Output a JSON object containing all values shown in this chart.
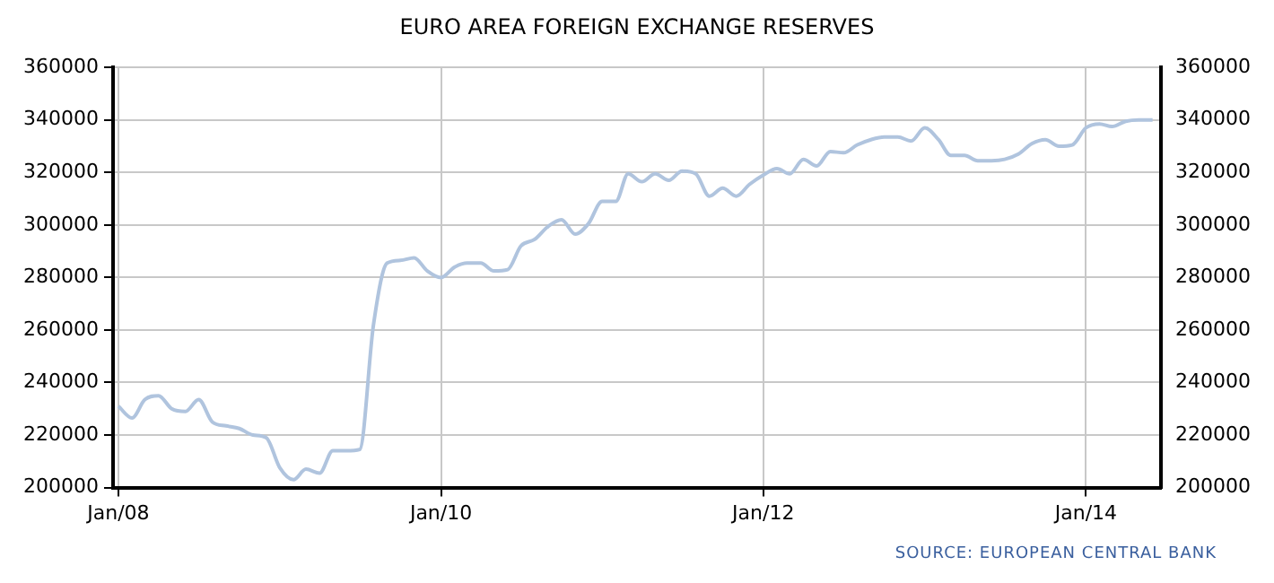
{
  "chart_data": {
    "type": "line",
    "title": "EURO AREA FOREIGN EXCHANGE RESERVES",
    "x": [
      "2008-01",
      "2008-02",
      "2008-03",
      "2008-04",
      "2008-05",
      "2008-06",
      "2008-07",
      "2008-08",
      "2008-09",
      "2008-10",
      "2008-11",
      "2008-12",
      "2009-01",
      "2009-02",
      "2009-03",
      "2009-04",
      "2009-05",
      "2009-06",
      "2009-07",
      "2009-08",
      "2009-09",
      "2009-10",
      "2009-11",
      "2009-12",
      "2010-01",
      "2010-02",
      "2010-03",
      "2010-04",
      "2010-05",
      "2010-06",
      "2010-07",
      "2010-08",
      "2010-09",
      "2010-10",
      "2010-11",
      "2010-12",
      "2011-01",
      "2011-02",
      "2011-03",
      "2011-04",
      "2011-05",
      "2011-06",
      "2011-07",
      "2011-08",
      "2011-09",
      "2011-10",
      "2011-11",
      "2011-12",
      "2012-01",
      "2012-02",
      "2012-03",
      "2012-04",
      "2012-05",
      "2012-06",
      "2012-07",
      "2012-08",
      "2012-09",
      "2012-10",
      "2012-11",
      "2012-12",
      "2013-01",
      "2013-02",
      "2013-03",
      "2013-04",
      "2013-05",
      "2013-06",
      "2013-07",
      "2013-08",
      "2013-09",
      "2013-10",
      "2013-11",
      "2013-12",
      "2014-01",
      "2014-02",
      "2014-03",
      "2014-04",
      "2014-05",
      "2014-06"
    ],
    "series": [
      {
        "color": "#b0c4de",
        "values": [
          231000,
          226500,
          233500,
          235000,
          230000,
          229000,
          233500,
          225000,
          223500,
          222500,
          220000,
          219000,
          207500,
          203000,
          207000,
          205500,
          214000,
          214000,
          214500,
          262000,
          285500,
          286500,
          287500,
          282500,
          280000,
          284000,
          285500,
          285500,
          282500,
          283000,
          292000,
          294500,
          299500,
          302000,
          296500,
          300500,
          309000,
          309000,
          319500,
          316500,
          319500,
          317000,
          320500,
          319500,
          311000,
          314000,
          311000,
          315500,
          319000,
          321500,
          319500,
          325000,
          322500,
          328000,
          327500,
          330500,
          332500,
          333500,
          333500,
          332000,
          337000,
          332500,
          326500,
          326500,
          324500,
          324500,
          325000,
          327000,
          331000,
          332500,
          330000,
          330500,
          337000,
          338500,
          337500,
          339500,
          340000,
          340000
        ]
      }
    ],
    "xlim": [
      "2007-12-20",
      "2014-06-20"
    ],
    "xticks": [
      {
        "value": "2008-01",
        "label": "Jan/08"
      },
      {
        "value": "2010-01",
        "label": "Jan/10"
      },
      {
        "value": "2012-01",
        "label": "Jan/12"
      },
      {
        "value": "2014-01",
        "label": "Jan/14"
      }
    ],
    "ylim": [
      200000,
      360000
    ],
    "yticks": [
      200000,
      220000,
      240000,
      260000,
      280000,
      300000,
      320000,
      340000,
      360000
    ],
    "y2lim": [
      200000,
      360000
    ],
    "y2ticks": [
      200000,
      220000,
      240000,
      260000,
      280000,
      300000,
      320000,
      340000,
      360000
    ],
    "grid": true,
    "legend": false,
    "marker": "none",
    "line_style": "solid",
    "annotations": [
      "SOURCE: EUROPEAN CENTRAL BANK"
    ]
  }
}
